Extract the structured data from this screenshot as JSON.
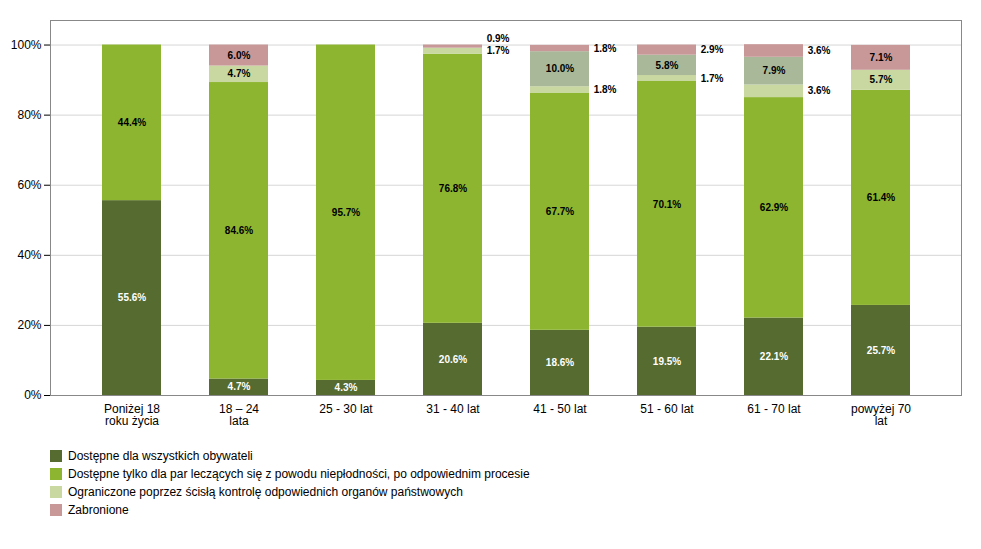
{
  "chart_data": {
    "type": "bar",
    "stacked": true,
    "categories": [
      "Poniżej 18\nroku życia",
      "18 – 24\nlata",
      "25 - 30 lat",
      "31 - 40 lat",
      "41 - 50 lat",
      "51 - 60 lat",
      "61 - 70 lat",
      "powyżej 70\nlat"
    ],
    "series": [
      {
        "name": "Dostępne dla wszystkich obywateli",
        "color": "#556B2F",
        "values": [
          55.6,
          4.7,
          4.3,
          20.6,
          18.6,
          19.5,
          22.1,
          25.7
        ],
        "value_labels": [
          "55.6%",
          "4.7%",
          "4.3%",
          "20.6%",
          "18.6%",
          "19.5%",
          "22.1%",
          "25.7%"
        ]
      },
      {
        "name": "Dostępne tylko dla par leczących się z powodu niepłodności, po odpowiednim procesie",
        "color": "#8DB530",
        "values": [
          44.4,
          84.6,
          95.7,
          76.8,
          67.7,
          70.1,
          62.9,
          61.4
        ],
        "value_labels": [
          "44.4%",
          "84.6%",
          "95.7%",
          "76.8%",
          "67.7%",
          "70.1%",
          "62.9%",
          "61.4%"
        ]
      },
      {
        "name": "Ograniczone poprzez ścisłą kontrolę odpowiednich organów państwowych",
        "color": "#C8D8A0",
        "values": [
          0.0,
          4.7,
          0.0,
          1.7,
          1.8,
          1.7,
          3.6,
          5.7
        ],
        "value_labels": [
          null,
          "4.7%",
          null,
          "1.7%",
          "1.8%",
          "1.7%",
          "3.6%",
          "5.7%"
        ]
      },
      {
        "color": "#A8B898",
        "values": [
          0.0,
          0.0,
          0.0,
          0.0,
          10.0,
          5.8,
          7.9,
          0.0
        ],
        "value_labels": [
          null,
          null,
          null,
          null,
          "10.0%",
          "5.8%",
          "7.9%",
          null
        ]
      },
      {
        "name": "Zabronione",
        "color": "#C89898",
        "values": [
          0.0,
          6.0,
          0.0,
          0.9,
          1.8,
          2.9,
          3.6,
          7.1
        ],
        "value_labels": [
          null,
          "6.0%",
          null,
          "0.9%",
          "1.8%",
          "2.9%",
          "3.6%",
          "7.1%"
        ]
      }
    ],
    "ylim": [
      0,
      107
    ],
    "yticks": [
      {
        "value": 0,
        "label": "0%"
      },
      {
        "value": 20,
        "label": "20%"
      },
      {
        "value": 40,
        "label": "40%"
      },
      {
        "value": 60,
        "label": "60%"
      },
      {
        "value": 80,
        "label": "80%"
      },
      {
        "value": 100,
        "label": "100%"
      }
    ],
    "grid": true,
    "data_labels": true,
    "legend": "bottom"
  }
}
